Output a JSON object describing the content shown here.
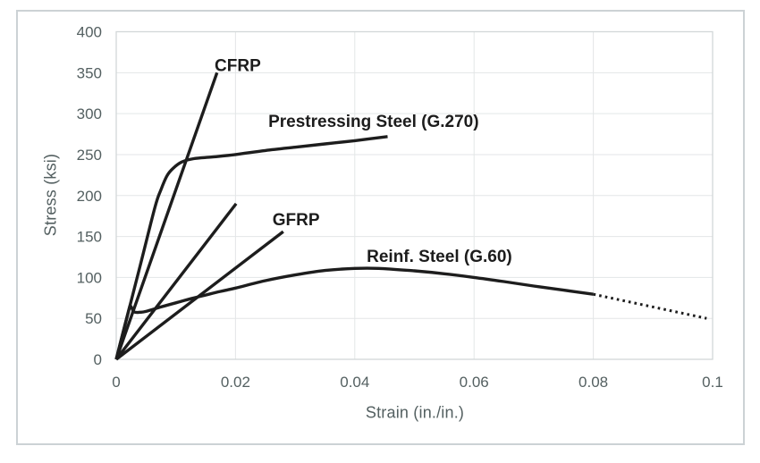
{
  "figure": {
    "background": "#ffffff",
    "frame_color": "#ccd2d5"
  },
  "chart_data": {
    "type": "line",
    "title": "",
    "xlabel": "Strain (in./in.)",
    "ylabel": "Stress (ksi)",
    "xlim": [
      0,
      0.1
    ],
    "ylim": [
      0,
      400
    ],
    "xticks": [
      0,
      0.02,
      0.04,
      0.06,
      0.08,
      0.1
    ],
    "xtick_labels": [
      "0",
      "0.02",
      "0.04",
      "0.06",
      "0.08",
      "0.1"
    ],
    "yticks": [
      0,
      50,
      100,
      150,
      200,
      250,
      300,
      350,
      400
    ],
    "ytick_labels": [
      "0",
      "50",
      "100",
      "150",
      "200",
      "250",
      "300",
      "350",
      "400"
    ],
    "grid": true,
    "legend": "none",
    "axis_text_color": "#546061",
    "grid_color": "#e3e6e7",
    "plot_border_color": "#d2d7d8",
    "curve_color": "#1d1d1d",
    "series": [
      {
        "label": "CFRP",
        "smooth": false,
        "dash": "solid",
        "points": [
          [
            0,
            0
          ],
          [
            0.0169,
            350
          ]
        ]
      },
      {
        "label": "Prestressing Steel (G.270)",
        "smooth": true,
        "dash": "solid",
        "points": [
          [
            0,
            0
          ],
          [
            0.004,
            114
          ],
          [
            0.0065,
            186
          ],
          [
            0.0075,
            207
          ],
          [
            0.0085,
            224
          ],
          [
            0.0095,
            233
          ],
          [
            0.011,
            241
          ],
          [
            0.013,
            245
          ],
          [
            0.016,
            247
          ],
          [
            0.02,
            250
          ],
          [
            0.025,
            255
          ],
          [
            0.03,
            259
          ],
          [
            0.035,
            263
          ],
          [
            0.04,
            267
          ],
          [
            0.0455,
            272
          ]
        ]
      },
      {
        "label": "",
        "smooth": false,
        "dash": "solid",
        "points": [
          [
            0,
            0
          ],
          [
            0.0201,
            190
          ]
        ]
      },
      {
        "label": "GFRP",
        "smooth": false,
        "dash": "solid",
        "points": [
          [
            0,
            0
          ],
          [
            0.028,
            156
          ]
        ]
      },
      {
        "label": "Reinf. Steel (G.60)",
        "smooth": true,
        "dash": "solid",
        "points": [
          [
            0,
            0
          ],
          [
            0.001,
            29
          ],
          [
            0.0021,
            60
          ],
          [
            0.0024,
            65
          ],
          [
            0.003,
            58
          ],
          [
            0.004,
            57.5
          ],
          [
            0.005,
            58.5
          ],
          [
            0.0075,
            64
          ],
          [
            0.01,
            69
          ],
          [
            0.0125,
            74
          ],
          [
            0.015,
            78.5
          ],
          [
            0.0175,
            83
          ],
          [
            0.02,
            87
          ],
          [
            0.025,
            96
          ],
          [
            0.03,
            103
          ],
          [
            0.035,
            108.5
          ],
          [
            0.04,
            111
          ],
          [
            0.044,
            111
          ],
          [
            0.05,
            108
          ],
          [
            0.055,
            104.5
          ],
          [
            0.06,
            100
          ],
          [
            0.065,
            95
          ],
          [
            0.07,
            89.5
          ],
          [
            0.075,
            84.5
          ],
          [
            0.08,
            79.5
          ]
        ]
      },
      {
        "label": "",
        "smooth": false,
        "dash": "dotted",
        "points": [
          [
            0.08,
            79.5
          ],
          [
            0.099,
            50
          ]
        ]
      }
    ],
    "annotations": [
      {
        "text": "CFRP",
        "x": 0.0165,
        "y": 359
      },
      {
        "text": "Prestressing Steel (G.270)",
        "x": 0.0255,
        "y": 291
      },
      {
        "text": "GFRP",
        "x": 0.0262,
        "y": 171
      },
      {
        "text": "Reinf. Steel (G.60)",
        "x": 0.042,
        "y": 126
      }
    ]
  }
}
